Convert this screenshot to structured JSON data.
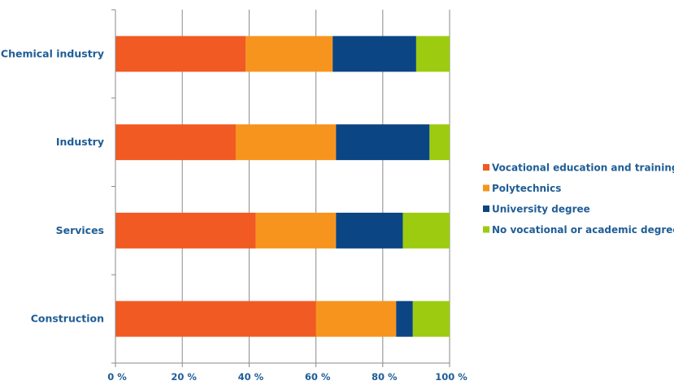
{
  "chart_data": {
    "type": "bar",
    "orientation": "horizontal",
    "stacked": true,
    "categories": [
      "Chemical industry",
      "Industry",
      "Services",
      "Construction"
    ],
    "series": [
      {
        "name": "Vocational education and training",
        "color": "#f15a22",
        "values": [
          39,
          36,
          42,
          60
        ]
      },
      {
        "name": "Polytechnics",
        "color": "#f7941d",
        "values": [
          26,
          30,
          24,
          24
        ]
      },
      {
        "name": "University degree",
        "color": "#0b4583",
        "values": [
          25,
          28,
          20,
          5
        ]
      },
      {
        "name": "No vocational or academic degree",
        "color": "#9dcb0f",
        "values": [
          10,
          6,
          14,
          11
        ]
      }
    ],
    "xlim": [
      0,
      100
    ],
    "xticks": [
      0,
      20,
      40,
      60,
      80,
      100
    ],
    "xtick_labels": [
      "0 %",
      "20 %",
      "40 %",
      "60 %",
      "80 %",
      "100 %"
    ],
    "grid": true,
    "legend_position": "right"
  }
}
